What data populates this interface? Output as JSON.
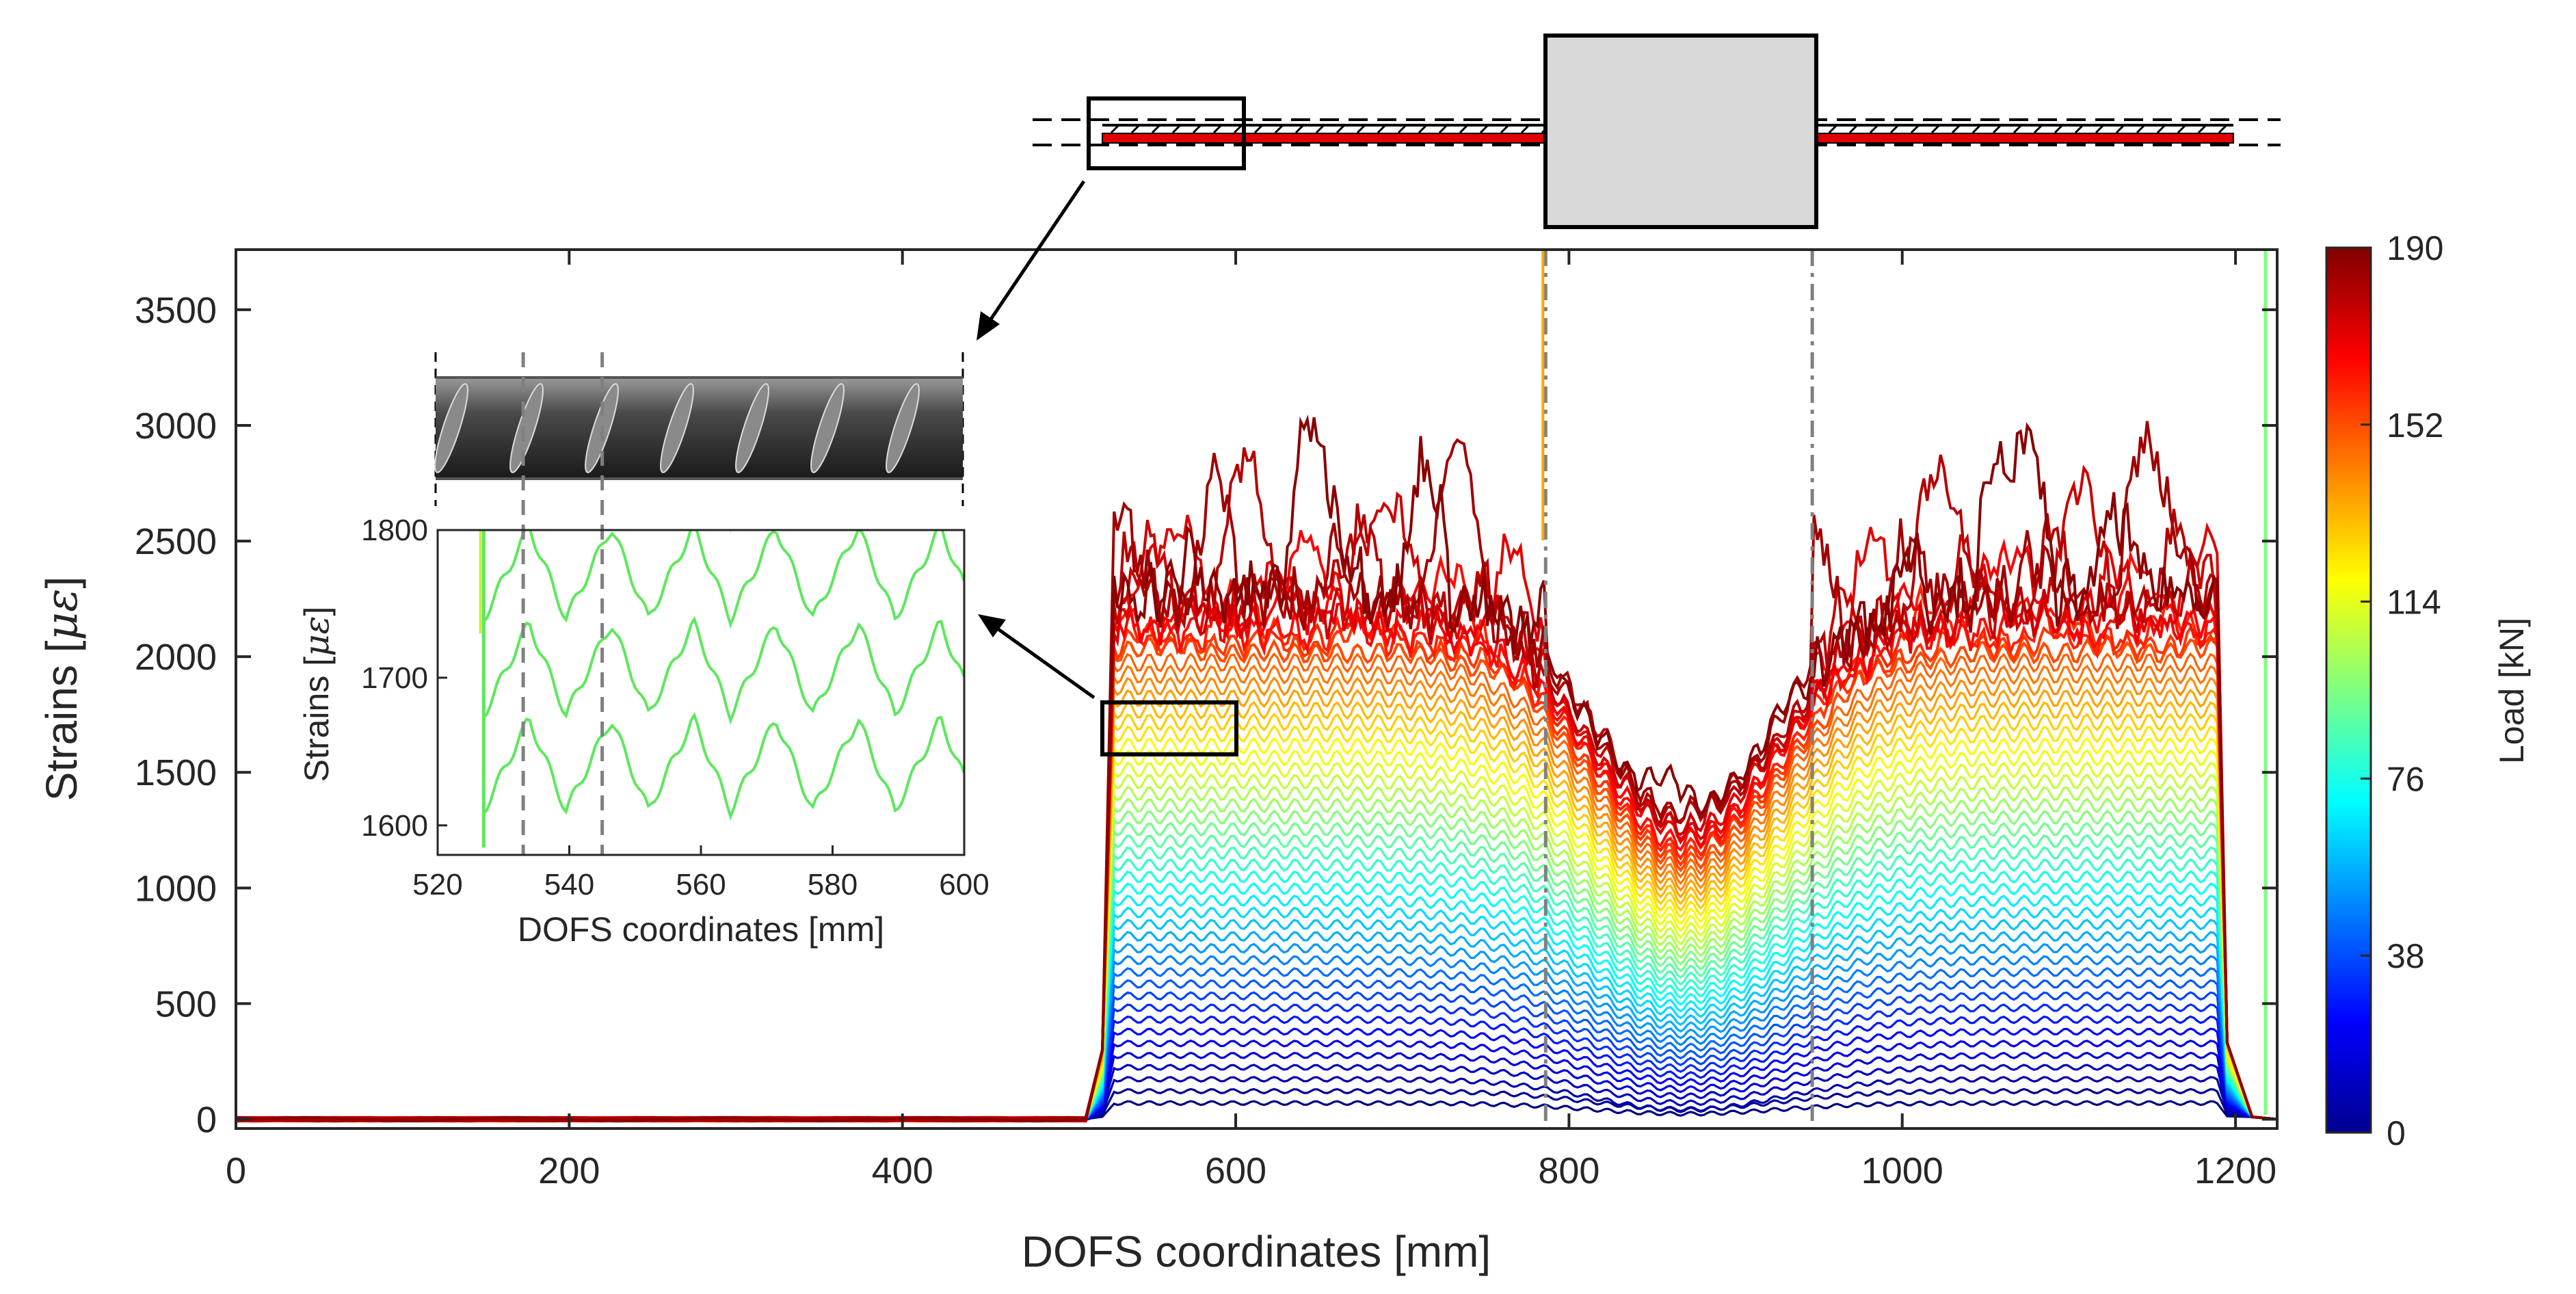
{
  "chart_data": [
    {
      "type": "line",
      "title": "",
      "xlabel": "DOFS coordinates [mm]",
      "ylabel": "Strains [με]",
      "ylabel_prefix": "Strains [",
      "ylabel_unit": "με",
      "ylabel_suffix": "]",
      "xlim": [
        0,
        1225
      ],
      "ylim": [
        -40,
        3760
      ],
      "xticks": [
        0,
        200,
        400,
        600,
        800,
        1000,
        1200
      ],
      "yticks": [
        0,
        500,
        1000,
        1500,
        2000,
        2500,
        3000,
        3500
      ],
      "x_tick_labels": [
        "0",
        "200",
        "400",
        "600",
        "800",
        "1000",
        "1200"
      ],
      "y_tick_labels": [
        "0",
        "500",
        "1000",
        "1500",
        "2000",
        "2500",
        "3000",
        "3500"
      ],
      "grid": false,
      "series_description": "One strain profile per load step, colored by load on the jet colormap",
      "load_min_kN": 0,
      "load_max_kN": 190,
      "bonded_region_mm": [
        527,
        1190
      ],
      "load_step_kN": 4,
      "midspan_dip_center_mm": 870,
      "marker_lines_x": [
        786,
        946
      ],
      "colorbar": {
        "label": "Load [kN]",
        "ticks": [
          0,
          38,
          76,
          114,
          152,
          190
        ],
        "tick_labels": [
          "0",
          "38",
          "76",
          "114",
          "152",
          "190"
        ]
      }
    },
    {
      "type": "line",
      "title": "",
      "xlabel": "DOFS coordinates [mm]",
      "ylabel": "Strains [με]",
      "ylabel_prefix": "Strains [",
      "ylabel_unit": "με",
      "ylabel_suffix": "]",
      "xlim": [
        520,
        600
      ],
      "ylim": [
        1580,
        1800
      ],
      "xticks": [
        520,
        540,
        560,
        580,
        600
      ],
      "yticks": [
        1600,
        1700,
        1800
      ],
      "x_tick_labels": [
        "520",
        "540",
        "560",
        "580",
        "600"
      ],
      "y_tick_labels": [
        "1600",
        "1700",
        "1800"
      ],
      "rib_lines_x": [
        533,
        545
      ],
      "series_description": "Zoomed strain profiles in the 520–600 mm range"
    }
  ],
  "colors": {
    "axis": "#262626",
    "rebar_red": "#e00000",
    "block_gray": "#d9d9d9",
    "marker_gray": "#808080",
    "marker_orange": "#ffa500"
  }
}
